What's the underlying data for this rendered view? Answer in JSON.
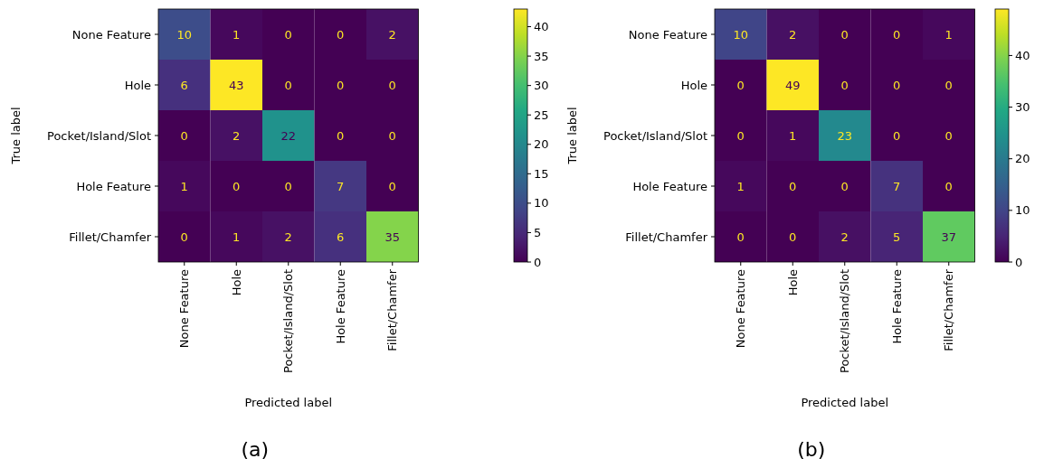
{
  "chart_data": [
    {
      "type": "heatmap",
      "xlabel": "Predicted label",
      "ylabel": "True label",
      "categories": [
        "None Feature",
        "Hole",
        "Pocket/Island/Slot",
        "Hole Feature",
        "Fillet/Chamfer"
      ],
      "y_categories": [
        "None Feature",
        "Hole",
        "Pocket/Island/Slot",
        "Hole Feature",
        "Fillet/Chamfer"
      ],
      "cells": [
        [
          10,
          1,
          0,
          0,
          2
        ],
        [
          6,
          43,
          0,
          0,
          0
        ],
        [
          0,
          2,
          22,
          0,
          0
        ],
        [
          1,
          0,
          0,
          7,
          0
        ],
        [
          0,
          1,
          2,
          6,
          35
        ]
      ],
      "clim": [
        0,
        43
      ],
      "cticks": [
        0,
        5,
        10,
        15,
        20,
        25,
        30,
        35,
        40
      ],
      "data_labels": true,
      "annotations": [
        "(a)"
      ]
    },
    {
      "type": "heatmap",
      "xlabel": "Predicted label",
      "ylabel": "True label",
      "categories": [
        "None Feature",
        "Hole",
        "Pocket/Island/Slot",
        "Hole Feature",
        "Fillet/Chamfer"
      ],
      "y_categories": [
        "None Feature",
        "Hole",
        "Pocket/Island/Slot",
        "Hole Feature",
        "Fillet/Chamfer"
      ],
      "cells": [
        [
          10,
          2,
          0,
          0,
          1
        ],
        [
          0,
          49,
          0,
          0,
          0
        ],
        [
          0,
          1,
          23,
          0,
          0
        ],
        [
          1,
          0,
          0,
          7,
          0
        ],
        [
          0,
          0,
          2,
          5,
          37
        ]
      ],
      "clim": [
        0,
        49
      ],
      "cticks": [
        0,
        10,
        20,
        30,
        40
      ],
      "data_labels": true,
      "annotations": [
        "(b)"
      ]
    }
  ]
}
